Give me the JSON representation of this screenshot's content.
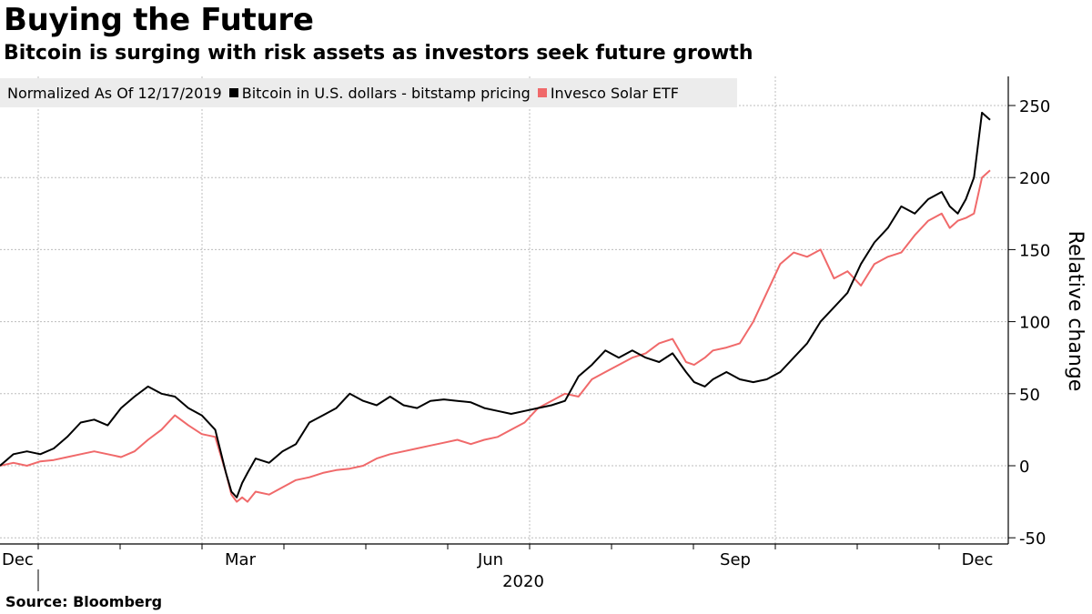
{
  "chart_data": {
    "type": "line",
    "title": "Buying the Future",
    "subtitle": "Bitcoin is surging with risk assets as investors seek future growth",
    "legend_note": "Normalized As Of 12/17/2019",
    "ylabel": "Relative change",
    "xlabel": "2020",
    "ylim": [
      -50,
      270
    ],
    "yticks": [
      -50,
      0,
      50,
      100,
      150,
      200,
      250
    ],
    "ytick_labels": [
      "-50",
      "0",
      "50",
      "100",
      "150",
      "200",
      "250"
    ],
    "xlim": [
      0,
      360
    ],
    "x_month_ticks": [
      14,
      45,
      75,
      105,
      136,
      166,
      197,
      228,
      258,
      289,
      319,
      350
    ],
    "x_labels": [
      {
        "x": 14,
        "label": "Dec"
      },
      {
        "x": 88,
        "label": "Mar"
      },
      {
        "x": 180,
        "label": "Jun"
      },
      {
        "x": 272,
        "label": "Sep"
      },
      {
        "x": 363,
        "label": "Dec"
      }
    ],
    "grid": true,
    "legend_position": "top-left",
    "series": [
      {
        "name": "Bitcoin in U.S. dollars - bitstamp pricing",
        "color": "#000000",
        "x": [
          0,
          5,
          10,
          15,
          20,
          25,
          30,
          35,
          40,
          45,
          50,
          55,
          60,
          65,
          70,
          75,
          80,
          84,
          86,
          88,
          90,
          92,
          95,
          100,
          105,
          110,
          115,
          120,
          125,
          130,
          135,
          140,
          145,
          150,
          155,
          160,
          165,
          170,
          175,
          180,
          185,
          190,
          195,
          200,
          205,
          210,
          215,
          220,
          225,
          230,
          235,
          240,
          245,
          250,
          255,
          258,
          262,
          265,
          270,
          275,
          280,
          285,
          290,
          295,
          300,
          305,
          310,
          315,
          320,
          325,
          330,
          335,
          340,
          345,
          350,
          353,
          356,
          359,
          362,
          365,
          368
        ],
        "values": [
          0,
          8,
          10,
          8,
          12,
          20,
          30,
          32,
          28,
          40,
          48,
          55,
          50,
          48,
          40,
          35,
          25,
          -5,
          -18,
          -22,
          -12,
          -5,
          5,
          2,
          10,
          15,
          30,
          35,
          40,
          50,
          45,
          42,
          48,
          42,
          40,
          45,
          46,
          45,
          44,
          40,
          38,
          36,
          38,
          40,
          42,
          45,
          62,
          70,
          80,
          75,
          80,
          75,
          72,
          78,
          65,
          58,
          55,
          60,
          65,
          60,
          58,
          60,
          65,
          75,
          85,
          100,
          110,
          120,
          140,
          155,
          165,
          180,
          175,
          185,
          190,
          180,
          175,
          185,
          200,
          245,
          240
        ]
      },
      {
        "name": "Invesco Solar ETF",
        "color": "#f0696a",
        "x": [
          0,
          5,
          10,
          15,
          20,
          25,
          30,
          35,
          40,
          45,
          50,
          55,
          60,
          65,
          70,
          75,
          80,
          84,
          86,
          88,
          90,
          92,
          95,
          100,
          105,
          110,
          115,
          120,
          125,
          130,
          135,
          140,
          145,
          150,
          155,
          160,
          165,
          170,
          175,
          180,
          185,
          190,
          195,
          200,
          205,
          210,
          215,
          220,
          225,
          230,
          235,
          240,
          245,
          250,
          255,
          258,
          262,
          265,
          270,
          275,
          280,
          285,
          290,
          295,
          300,
          305,
          310,
          315,
          320,
          325,
          330,
          335,
          340,
          345,
          350,
          353,
          356,
          359,
          362,
          365,
          368
        ],
        "values": [
          0,
          2,
          0,
          3,
          4,
          6,
          8,
          10,
          8,
          6,
          10,
          18,
          25,
          35,
          28,
          22,
          20,
          -5,
          -20,
          -25,
          -22,
          -25,
          -18,
          -20,
          -15,
          -10,
          -8,
          -5,
          -3,
          -2,
          0,
          5,
          8,
          10,
          12,
          14,
          16,
          18,
          15,
          18,
          20,
          25,
          30,
          40,
          45,
          50,
          48,
          60,
          65,
          70,
          75,
          78,
          85,
          88,
          72,
          70,
          75,
          80,
          82,
          85,
          100,
          120,
          140,
          148,
          145,
          150,
          130,
          135,
          125,
          140,
          145,
          148,
          160,
          170,
          175,
          165,
          170,
          172,
          175,
          200,
          205
        ]
      }
    ]
  },
  "legend": {
    "items": [
      {
        "label": "Bitcoin in U.S. dollars - bitstamp pricing",
        "color": "#000000"
      },
      {
        "label": "Invesco Solar ETF",
        "color": "#f0696a"
      }
    ]
  },
  "source": "Source: Bloomberg"
}
